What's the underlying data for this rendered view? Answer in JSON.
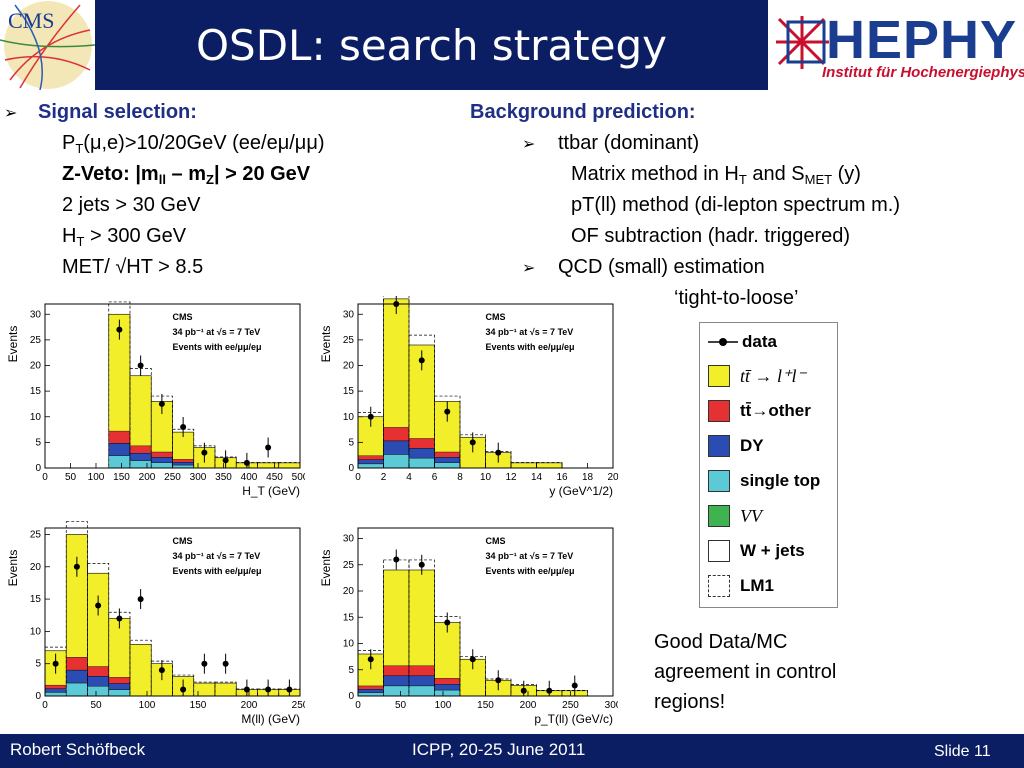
{
  "header": {
    "title": "OSDL: search strategy",
    "cms_logo_text": "CMS"
  },
  "hephy": {
    "name": "HEPHY",
    "subtitle": "Institut für Hochenergiephysik"
  },
  "signal": {
    "heading": "Signal selection:",
    "pt_main": "P",
    "pt_sub": "T",
    "pt_rest": "(μ,e)>10/20GeV (ee/eμ/μμ)",
    "zveto_a": "Z-Veto: |m",
    "zveto_sub1": "ll",
    "zveto_b": " – m",
    "zveto_sub2": "Z",
    "zveto_c": "| > 20 GeV",
    "jets": "2 jets > 30 GeV",
    "ht_main": "H",
    "ht_sub": "T",
    "ht_rest": " > 300 GeV",
    "met": "MET/ √HT > 8.5"
  },
  "background": {
    "heading": "Background prediction:",
    "ttbar": "ttbar (dominant)",
    "mm_a": "Matrix method in H",
    "mm_sub1": "T",
    "mm_b": " and S",
    "mm_sub2": "MET",
    "mm_c": " (y)",
    "pt_ll": "pT(ll) method (di-lepton spectrum m.)",
    "of": "OF subtraction (hadr. triggered)",
    "qcd": "QCD (small) estimation",
    "ttl": "‘tight-to-loose’"
  },
  "plots_common": {
    "cms": "CMS",
    "lumi": "34 pb⁻¹  at √s = 7 TeV",
    "events": "Events with ee/μμ/eμ",
    "ylabel": "Events"
  },
  "plots": [
    {
      "xlabel": "H_T (GeV)",
      "ticks": [
        "0",
        "50",
        "100",
        "150",
        "200",
        "250",
        "300",
        "350",
        "400",
        "450",
        "500"
      ],
      "yticks": [
        "0",
        "5",
        "10",
        "15",
        "20",
        "25",
        "30"
      ]
    },
    {
      "xlabel": "y (GeV^1/2)",
      "ticks": [
        "0",
        "2",
        "4",
        "6",
        "8",
        "10",
        "12",
        "14",
        "16",
        "18",
        "20"
      ],
      "yticks": [
        "0",
        "5",
        "10",
        "15",
        "20",
        "25",
        "30"
      ]
    },
    {
      "xlabel": "M(ll) (GeV)",
      "ticks": [
        "0",
        "50",
        "100",
        "150",
        "200",
        "250"
      ],
      "yticks": [
        "0",
        "5",
        "10",
        "15",
        "20",
        "25"
      ]
    },
    {
      "xlabel": "p_T(ll) (GeV/c)",
      "ticks": [
        "0",
        "50",
        "100",
        "150",
        "200",
        "250",
        "300"
      ],
      "yticks": [
        "0",
        "5",
        "10",
        "15",
        "20",
        "25",
        "30"
      ]
    }
  ],
  "legend": [
    {
      "label": "data",
      "color": "#000000"
    },
    {
      "label": "tt̄ → l⁺l⁻",
      "color": "#f2ee2a"
    },
    {
      "label": "tt̄→other",
      "color": "#e53131"
    },
    {
      "label": "DY",
      "color": "#2b4db3"
    },
    {
      "label": "single top",
      "color": "#5bc9d6"
    },
    {
      "label": "VV",
      "color": "#3fb34f"
    },
    {
      "label": "W + jets",
      "color": "#ffffff"
    },
    {
      "label": "LM1",
      "color": "#ffffff"
    }
  ],
  "note": {
    "line1": "Good Data/MC",
    "line2": "agreement in control",
    "line3": "regions!"
  },
  "footer": {
    "author": "Robert Schöfbeck",
    "conference": "ICPP, 20-25 June 2011",
    "slide": "Slide 11"
  }
}
